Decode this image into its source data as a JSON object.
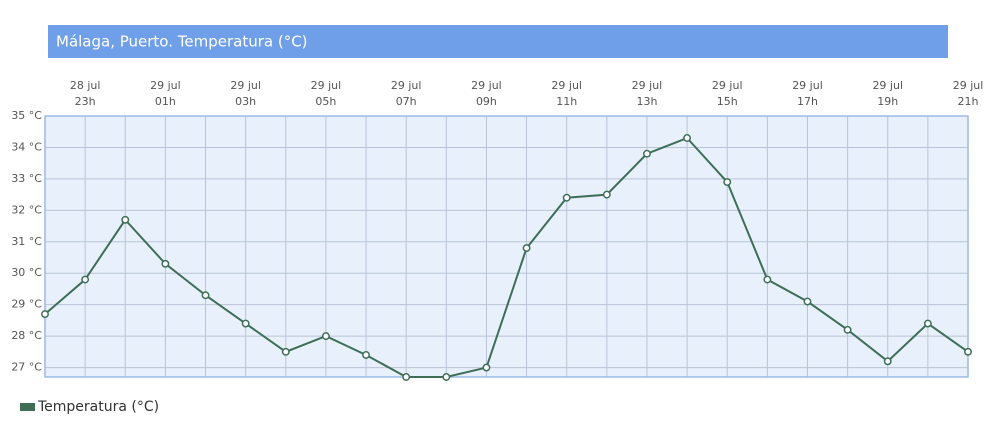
{
  "chart_data": {
    "type": "line",
    "title": "Málaga, Puerto. Temperatura (°C)",
    "categories": [
      null,
      "23h",
      null,
      "01h",
      null,
      "03h",
      null,
      "05h",
      null,
      "07h",
      null,
      "09h",
      null,
      "11h",
      null,
      "13h",
      null,
      "15h",
      null,
      "17h",
      null,
      "19h",
      null,
      "21h"
    ],
    "category_dates": [
      null,
      "28 jul",
      null,
      "29 jul",
      null,
      "29 jul",
      null,
      "29 jul",
      null,
      "29 jul",
      null,
      "29 jul",
      null,
      "29 jul",
      null,
      "29 jul",
      null,
      "29 jul",
      null,
      "29 jul",
      null,
      "29 jul",
      null,
      "29 jul"
    ],
    "series": [
      {
        "name": "Temperatura (°C)",
        "color": "#3f6e57",
        "values": [
          28.7,
          29.8,
          31.7,
          30.3,
          29.3,
          28.4,
          27.5,
          28.0,
          27.4,
          26.7,
          26.7,
          27.0,
          30.8,
          32.4,
          32.5,
          33.8,
          34.3,
          32.9,
          29.8,
          29.1,
          28.2,
          27.2,
          28.4,
          27.5
        ]
      }
    ],
    "ylim": [
      26.7,
      35
    ],
    "yticks": [
      {
        "value": 27,
        "label": "27 °C"
      },
      {
        "value": 28,
        "label": "28 °C"
      },
      {
        "value": 29,
        "label": "29 °C"
      },
      {
        "value": 30,
        "label": "30 °C"
      },
      {
        "value": 31,
        "label": "31 °C"
      },
      {
        "value": 32,
        "label": "32 °C"
      },
      {
        "value": 33,
        "label": "33 °C"
      },
      {
        "value": 34,
        "label": "34 °C"
      },
      {
        "value": 35,
        "label": "35 °C"
      }
    ],
    "grid": true,
    "legend": "bottom-left"
  }
}
